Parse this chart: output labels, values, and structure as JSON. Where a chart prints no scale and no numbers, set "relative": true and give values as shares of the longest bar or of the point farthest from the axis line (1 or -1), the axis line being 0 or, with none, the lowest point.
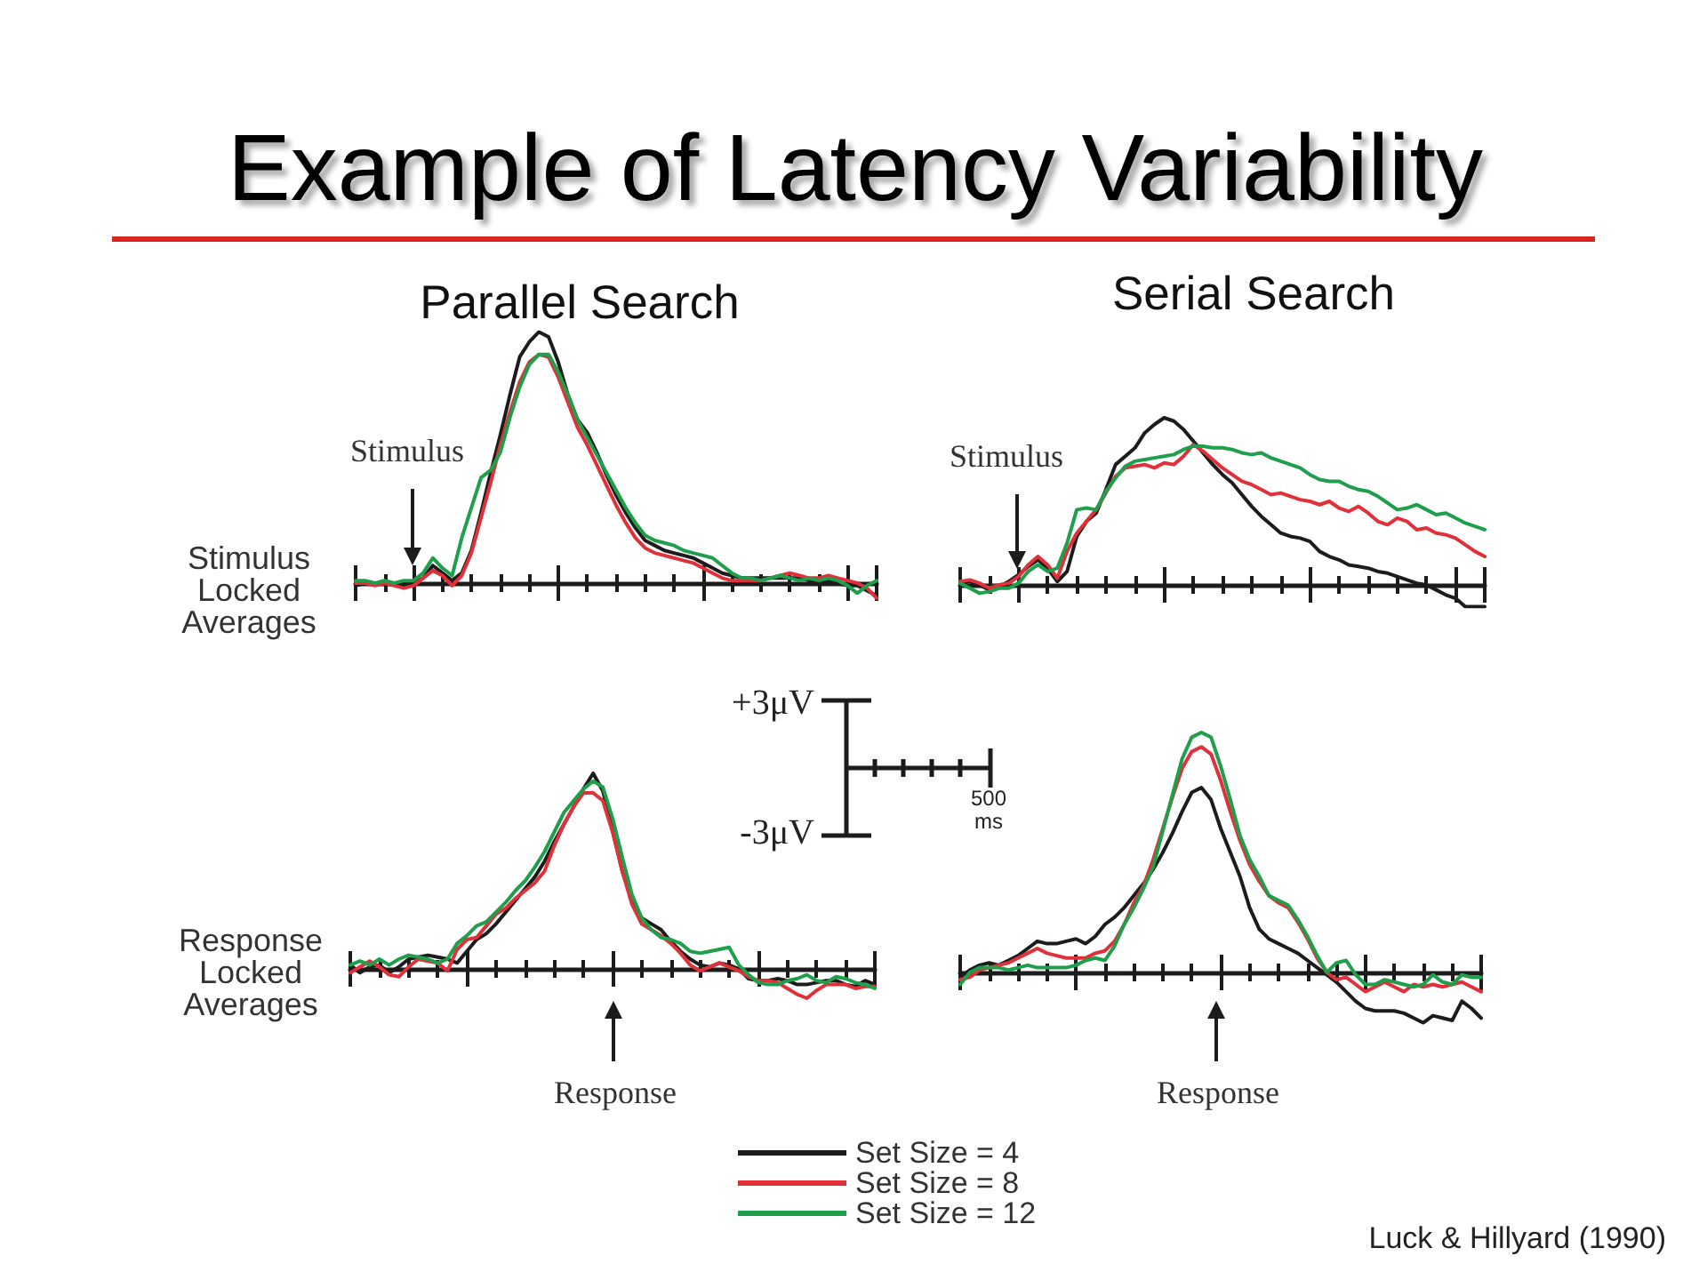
{
  "chart_data": [
    {
      "type": "other",
      "title": "Example of Latency Variability",
      "annotations": [
        "+3μV",
        "-3μV",
        "500 ms",
        "Luck & Hillyard (1990)"
      ]
    },
    {
      "type": "line",
      "title": "Parallel Search",
      "ylabel": "Stimulus Locked Averages",
      "annotations": [
        "Stimulus"
      ],
      "relative": true,
      "marker": "none",
      "categories": [
        null,
        null,
        null,
        null,
        null,
        null,
        null,
        null,
        null,
        null,
        null,
        null,
        null,
        null,
        null,
        null,
        null,
        null,
        null,
        null,
        null,
        null,
        null,
        null,
        null,
        null,
        null,
        null,
        null,
        null,
        null,
        null,
        null,
        null,
        null,
        null,
        null,
        null,
        null,
        null,
        null,
        null,
        null,
        null,
        null,
        null,
        null,
        null,
        null,
        null,
        null,
        null,
        null,
        null,
        null
      ],
      "series": [
        {
          "color": "#1c1c1c",
          "values": [
            -0.01,
            0,
            0,
            0,
            0,
            -0.01,
            0,
            0.02,
            0.07,
            0.04,
            0.01,
            0.04,
            0.13,
            0.28,
            0.44,
            0.59,
            0.75,
            0.9,
            0.96,
            1,
            0.98,
            0.88,
            0.75,
            0.65,
            0.6,
            0.52,
            0.43,
            0.35,
            0.28,
            0.22,
            0.17,
            0.15,
            0.13,
            0.12,
            0.11,
            0.1,
            0.08,
            0.06,
            0.04,
            0.03,
            0.02,
            0.02,
            0.02,
            0.02,
            0.02,
            0.02,
            0.02,
            0.01,
            0,
            0.01,
            0,
            -0.01,
            -0.01,
            -0.03,
            -0.05
          ]
        },
        {
          "color": "#e0303a",
          "values": [
            0,
            0,
            -0.01,
            0,
            -0.01,
            -0.02,
            -0.01,
            0.02,
            0.05,
            0.03,
            -0.01,
            0.03,
            0.12,
            0.26,
            0.4,
            0.55,
            0.68,
            0.8,
            0.88,
            0.91,
            0.9,
            0.82,
            0.72,
            0.62,
            0.55,
            0.47,
            0.39,
            0.31,
            0.24,
            0.18,
            0.14,
            0.12,
            0.11,
            0.1,
            0.09,
            0.08,
            0.06,
            0.04,
            0.02,
            0.01,
            0.01,
            0.01,
            0.01,
            0.02,
            0.03,
            0.04,
            0.03,
            0.02,
            0.02,
            0.03,
            0.02,
            0.01,
            0,
            -0.02,
            -0.06
          ]
        },
        {
          "color": "#1f9e4c",
          "values": [
            0.01,
            0.01,
            0,
            0.01,
            0,
            0.01,
            0.01,
            0.04,
            0.1,
            0.06,
            0.03,
            0.18,
            0.3,
            0.42,
            0.45,
            0.52,
            0.66,
            0.78,
            0.87,
            0.91,
            0.91,
            0.84,
            0.75,
            0.65,
            0.58,
            0.51,
            0.44,
            0.37,
            0.3,
            0.24,
            0.19,
            0.17,
            0.16,
            0.15,
            0.13,
            0.12,
            0.11,
            0.1,
            0.07,
            0.04,
            0.02,
            0.02,
            0.01,
            0.02,
            0.03,
            0.02,
            0.01,
            0.02,
            0.01,
            0.02,
            0.01,
            -0.01,
            -0.04,
            -0.01,
            0.01
          ]
        }
      ]
    },
    {
      "type": "line",
      "title": "Serial Search",
      "annotations": [
        "Stimulus"
      ],
      "relative": true,
      "marker": "none",
      "categories": [
        null,
        null,
        null,
        null,
        null,
        null,
        null,
        null,
        null,
        null,
        null,
        null,
        null,
        null,
        null,
        null,
        null,
        null,
        null,
        null,
        null,
        null,
        null,
        null,
        null,
        null,
        null,
        null,
        null,
        null,
        null,
        null,
        null,
        null,
        null,
        null,
        null,
        null,
        null,
        null,
        null,
        null,
        null,
        null,
        null,
        null,
        null,
        null,
        null,
        null,
        null,
        null,
        null,
        null,
        null
      ],
      "series": [
        {
          "color": "#1c1c1c",
          "values": [
            0.01,
            0.02,
            0,
            -0.03,
            -0.01,
            0.02,
            0.06,
            0.11,
            0.15,
            0.1,
            0.02,
            0.08,
            0.29,
            0.38,
            0.43,
            0.57,
            0.72,
            0.77,
            0.82,
            0.91,
            0.96,
            1,
            0.98,
            0.93,
            0.86,
            0.79,
            0.72,
            0.66,
            0.61,
            0.54,
            0.47,
            0.41,
            0.36,
            0.31,
            0.29,
            0.28,
            0.26,
            0.2,
            0.17,
            0.15,
            0.12,
            0.11,
            0.1,
            0.08,
            0.07,
            0.05,
            0.03,
            0.01,
            0,
            -0.03,
            -0.06,
            -0.08,
            -0.13,
            -0.13,
            -0.13
          ]
        },
        {
          "color": "#e0303a",
          "values": [
            0.02,
            0.03,
            0.01,
            -0.02,
            0,
            0.01,
            0.05,
            0.12,
            0.17,
            0.12,
            0.04,
            0.2,
            0.31,
            0.38,
            0.45,
            0.55,
            0.65,
            0.7,
            0.71,
            0.72,
            0.7,
            0.73,
            0.72,
            0.77,
            0.84,
            0.8,
            0.75,
            0.7,
            0.66,
            0.62,
            0.6,
            0.57,
            0.54,
            0.55,
            0.53,
            0.51,
            0.5,
            0.48,
            0.5,
            0.46,
            0.44,
            0.47,
            0.43,
            0.38,
            0.36,
            0.4,
            0.38,
            0.33,
            0.34,
            0.31,
            0.3,
            0.28,
            0.24,
            0.2,
            0.17
          ]
        },
        {
          "color": "#1f9e4c",
          "values": [
            0.01,
            -0.02,
            -0.05,
            -0.04,
            -0.02,
            -0.02,
            0.01,
            0.08,
            0.12,
            0.08,
            0.1,
            0.25,
            0.45,
            0.46,
            0.45,
            0.56,
            0.64,
            0.71,
            0.74,
            0.75,
            0.76,
            0.77,
            0.78,
            0.81,
            0.83,
            0.83,
            0.82,
            0.82,
            0.81,
            0.79,
            0.78,
            0.79,
            0.76,
            0.74,
            0.72,
            0.7,
            0.66,
            0.63,
            0.62,
            0.62,
            0.59,
            0.57,
            0.56,
            0.53,
            0.49,
            0.45,
            0.46,
            0.48,
            0.45,
            0.42,
            0.43,
            0.4,
            0.37,
            0.35,
            0.33
          ]
        }
      ]
    },
    {
      "type": "line",
      "ylabel": "Response Locked Averages",
      "annotations": [
        "Response"
      ],
      "relative": true,
      "marker": "none",
      "categories": [
        null,
        null,
        null,
        null,
        null,
        null,
        null,
        null,
        null,
        null,
        null,
        null,
        null,
        null,
        null,
        null,
        null,
        null,
        null,
        null,
        null,
        null,
        null,
        null,
        null,
        null,
        null,
        null,
        null,
        null,
        null,
        null,
        null,
        null,
        null,
        null,
        null,
        null,
        null,
        null,
        null,
        null,
        null,
        null,
        null,
        null,
        null,
        null,
        null,
        null,
        null,
        null,
        null,
        null,
        null
      ],
      "series": [
        {
          "color": "#1c1c1c",
          "values": [
            0.02,
            -0.02,
            0.01,
            0.02,
            -0.02,
            0.01,
            0.05,
            0.06,
            0.07,
            0.06,
            0.05,
            0.03,
            0.09,
            0.15,
            0.18,
            0.23,
            0.29,
            0.35,
            0.41,
            0.47,
            0.55,
            0.65,
            0.74,
            0.83,
            0.92,
            1,
            0.91,
            0.71,
            0.5,
            0.35,
            0.26,
            0.23,
            0.2,
            0.14,
            0.09,
            0.05,
            0.02,
            0.01,
            0.03,
            0.02,
            0,
            -0.05,
            -0.06,
            -0.06,
            -0.05,
            -0.06,
            -0.08,
            -0.08,
            -0.07,
            -0.06,
            -0.06,
            -0.08,
            -0.09,
            -0.06,
            -0.08
          ]
        },
        {
          "color": "#e0303a",
          "values": [
            -0.02,
            0.01,
            0.04,
            0.01,
            -0.03,
            -0.04,
            0.01,
            0.05,
            0.04,
            0.03,
            -0.01,
            0.1,
            0.15,
            0.16,
            0.22,
            0.28,
            0.31,
            0.36,
            0.4,
            0.44,
            0.5,
            0.63,
            0.74,
            0.83,
            0.9,
            0.9,
            0.86,
            0.7,
            0.5,
            0.33,
            0.23,
            0.2,
            0.17,
            0.13,
            0.08,
            0.02,
            -0.01,
            0.01,
            0.03,
            0.01,
            -0.01,
            -0.04,
            -0.06,
            -0.06,
            -0.07,
            -0.1,
            -0.13,
            -0.15,
            -0.11,
            -0.08,
            -0.08,
            -0.08,
            -0.1,
            -0.09,
            -0.09
          ]
        },
        {
          "color": "#1f9e4c",
          "values": [
            0.02,
            0.04,
            0.02,
            0.05,
            0.02,
            0.05,
            0.07,
            0.06,
            0.05,
            0.03,
            0.05,
            0.13,
            0.17,
            0.22,
            0.24,
            0.29,
            0.34,
            0.4,
            0.45,
            0.52,
            0.6,
            0.7,
            0.8,
            0.86,
            0.92,
            0.96,
            0.93,
            0.77,
            0.57,
            0.38,
            0.26,
            0.2,
            0.16,
            0.15,
            0.13,
            0.09,
            0.08,
            0.09,
            0.1,
            0.11,
            0.02,
            -0.03,
            -0.07,
            -0.08,
            -0.08,
            -0.06,
            -0.05,
            -0.03,
            -0.06,
            -0.07,
            -0.04,
            -0.05,
            -0.07,
            -0.08,
            -0.1
          ]
        }
      ]
    },
    {
      "type": "line",
      "annotations": [
        "Response"
      ],
      "relative": true,
      "marker": "none",
      "legend": "bottom left",
      "categories": [
        null,
        null,
        null,
        null,
        null,
        null,
        null,
        null,
        null,
        null,
        null,
        null,
        null,
        null,
        null,
        null,
        null,
        null,
        null,
        null,
        null,
        null,
        null,
        null,
        null,
        null,
        null,
        null,
        null,
        null,
        null,
        null,
        null,
        null,
        null,
        null,
        null,
        null,
        null,
        null,
        null,
        null,
        null,
        null,
        null,
        null,
        null,
        null,
        null,
        null,
        null,
        null,
        null,
        null,
        null
      ],
      "series": [
        {
          "name": "Set Size = 4",
          "color": "#1c1c1c",
          "values": [
            -0.02,
            0.01,
            0.03,
            0.04,
            0.03,
            0.05,
            0.07,
            0.1,
            0.13,
            0.12,
            0.12,
            0.13,
            0.14,
            0.12,
            0.15,
            0.2,
            0.23,
            0.27,
            0.32,
            0.37,
            0.43,
            0.5,
            0.58,
            0.67,
            0.75,
            0.77,
            0.72,
            0.6,
            0.5,
            0.4,
            0.27,
            0.18,
            0.14,
            0.12,
            0.1,
            0.08,
            0.05,
            0.02,
            -0.01,
            -0.04,
            -0.08,
            -0.12,
            -0.15,
            -0.16,
            -0.16,
            -0.16,
            -0.17,
            -0.19,
            -0.21,
            -0.18,
            -0.19,
            -0.2,
            -0.12,
            -0.15,
            -0.19
          ]
        },
        {
          "name": "Set Size = 8",
          "color": "#e0303a",
          "values": [
            -0.03,
            -0.02,
            0.01,
            0.02,
            0.03,
            0.04,
            0.06,
            0.08,
            0.1,
            0.08,
            0.07,
            0.06,
            0.06,
            0.06,
            0.08,
            0.09,
            0.13,
            0.2,
            0.29,
            0.36,
            0.47,
            0.6,
            0.73,
            0.85,
            0.92,
            0.94,
            0.91,
            0.8,
            0.67,
            0.55,
            0.45,
            0.38,
            0.32,
            0.29,
            0.27,
            0.21,
            0.14,
            0.06,
            0,
            -0.03,
            -0.02,
            -0.05,
            -0.08,
            -0.06,
            -0.04,
            -0.06,
            -0.08,
            -0.05,
            -0.06,
            -0.05,
            -0.06,
            -0.05,
            -0.04,
            -0.06,
            -0.08
          ]
        },
        {
          "name": "Set Size = 12",
          "color": "#1f9e4c",
          "values": [
            -0.05,
            0,
            0.02,
            0.02,
            0.02,
            0.01,
            0.02,
            0.03,
            0.02,
            0.02,
            0.02,
            0.02,
            0.03,
            0.05,
            0.06,
            0.05,
            0.11,
            0.2,
            0.27,
            0.35,
            0.44,
            0.59,
            0.74,
            0.89,
            0.98,
            1,
            0.98,
            0.86,
            0.72,
            0.57,
            0.47,
            0.4,
            0.32,
            0.3,
            0.28,
            0.22,
            0.15,
            0.07,
            0,
            0.04,
            0.05,
            -0.01,
            -0.05,
            -0.05,
            -0.03,
            -0.04,
            -0.05,
            -0.06,
            -0.05,
            -0.01,
            -0.04,
            -0.05,
            -0.01,
            -0.02,
            -0.02
          ]
        }
      ]
    }
  ]
}
